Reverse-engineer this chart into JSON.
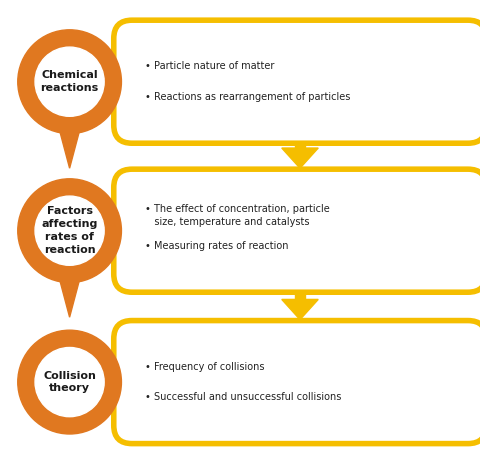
{
  "background_color": "#ffffff",
  "orange_color": "#E07820",
  "yellow_color": "#F5BE00",
  "text_color": "#222222",
  "rows": [
    {
      "circle_label": "Chemical\nreactions",
      "bullet_points": [
        "• Particle nature of matter",
        "• Reactions as rearrangement of particles"
      ]
    },
    {
      "circle_label": "Factors\naffecting\nrates of\nreaction",
      "bullet_points": [
        "• The effect of concentration, particle\n   size, temperature and catalysts",
        "• Measuring rates of reaction"
      ]
    },
    {
      "circle_label": "Collision\ntheory",
      "bullet_points": [
        "• Frequency of collisions",
        "• Successful and unsuccessful collisions"
      ]
    }
  ],
  "figsize": [
    4.8,
    4.71
  ],
  "dpi": 100
}
